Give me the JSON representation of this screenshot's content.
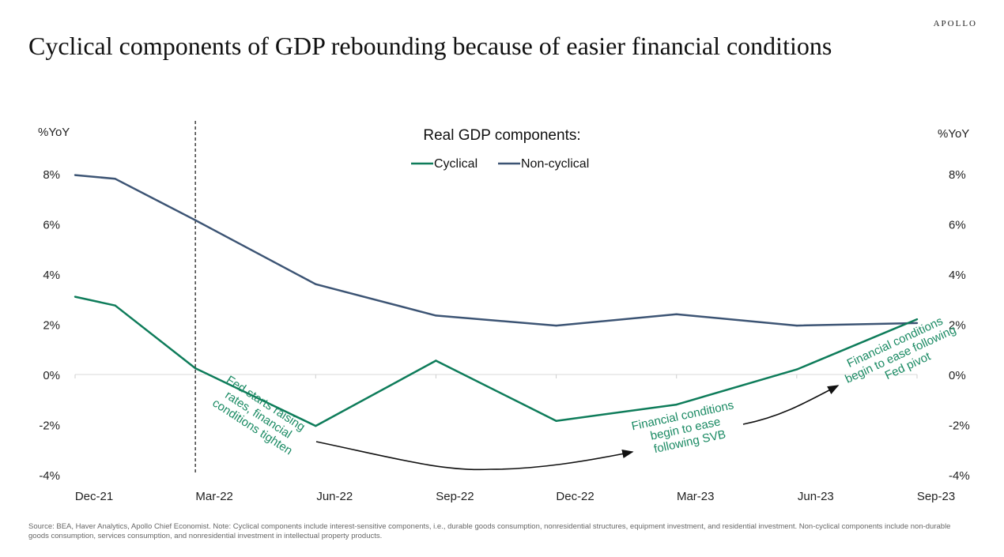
{
  "brand": "APOLLO",
  "title": "Cyclical components of GDP rebounding because of easier financial conditions",
  "source": "Source: BEA, Haver Analytics, Apollo Chief Economist. Note: Cyclical components include interest-sensitive components, i.e., durable goods consumption, nonresidential structures, equipment investment, and residential investment. Non-cyclical components include non-durable goods consumption, services consumption, and nonresidential investment in intellectual property products.",
  "colors": {
    "cyclical": "#0e7c5a",
    "non_cyclical": "#3c5474",
    "annotation": "#1a8a63",
    "arrow": "#111111"
  },
  "chart_data": {
    "type": "line",
    "legend_title": "Real GDP components:",
    "legend_position": "top-center",
    "ylabel_left": "%YoY",
    "ylabel_right": "%YoY",
    "ylim": [
      -4,
      8
    ],
    "yticks": [
      -4,
      -2,
      0,
      2,
      4,
      6,
      8
    ],
    "ytick_labels": [
      "-4%",
      "-2%",
      "0%",
      "2%",
      "4%",
      "6%",
      "8%"
    ],
    "xtick_labels": [
      "Dec-21",
      "Mar-22",
      "Jun-22",
      "Sep-22",
      "Dec-22",
      "Mar-23",
      "Jun-23",
      "Sep-23"
    ],
    "x": [
      "Dec-21",
      "Jan-22",
      "Mar-22",
      "Jun-22",
      "Sep-22",
      "Dec-22",
      "Mar-23",
      "Jun-23",
      "Sep-23"
    ],
    "series": [
      {
        "name": "Cyclical",
        "values": [
          3.1,
          2.75,
          0.25,
          -2.05,
          0.55,
          -1.85,
          -1.2,
          0.2,
          2.2
        ]
      },
      {
        "name": "Non-cyclical",
        "values": [
          7.95,
          7.8,
          6.15,
          3.6,
          2.35,
          1.95,
          2.4,
          1.95,
          2.05
        ]
      }
    ],
    "vertical_marker": {
      "x": "Mar-22 (Fed starts raising rates)",
      "style": "dashed"
    },
    "annotations": [
      {
        "lines": [
          "Fed starts raising",
          "rates, financial",
          "conditions tighten"
        ]
      },
      {
        "lines": [
          "Financial conditions",
          "begin to ease",
          "following SVB"
        ]
      },
      {
        "lines": [
          "Financial conditions",
          "begin to ease following",
          "Fed pivot"
        ]
      }
    ]
  }
}
